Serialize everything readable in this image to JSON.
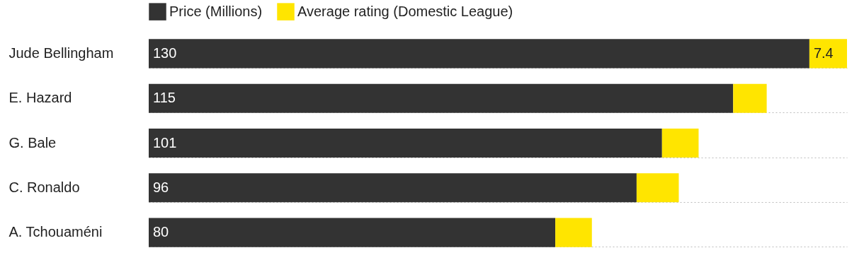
{
  "chart_data": {
    "type": "bar",
    "orientation": "horizontal",
    "stacked": true,
    "categories": [
      "Jude Bellingham",
      "E. Hazard",
      "G. Bale",
      "C. Ronaldo",
      "A. Tchouaméni"
    ],
    "series": [
      {
        "name": "Price (Millions)",
        "color": "#333333",
        "values": [
          130,
          115,
          101,
          96,
          80
        ],
        "value_labels": [
          "130",
          "115",
          "101",
          "96",
          "80"
        ]
      },
      {
        "name": "Average rating (Domestic League)",
        "color": "#ffe500",
        "values": [
          7.4,
          6.6,
          7.2,
          8.3,
          7.2
        ],
        "value_labels": [
          "7.4",
          null,
          null,
          null,
          null
        ]
      }
    ],
    "legend": "top left",
    "grid": "y",
    "tick_labels": "y"
  }
}
